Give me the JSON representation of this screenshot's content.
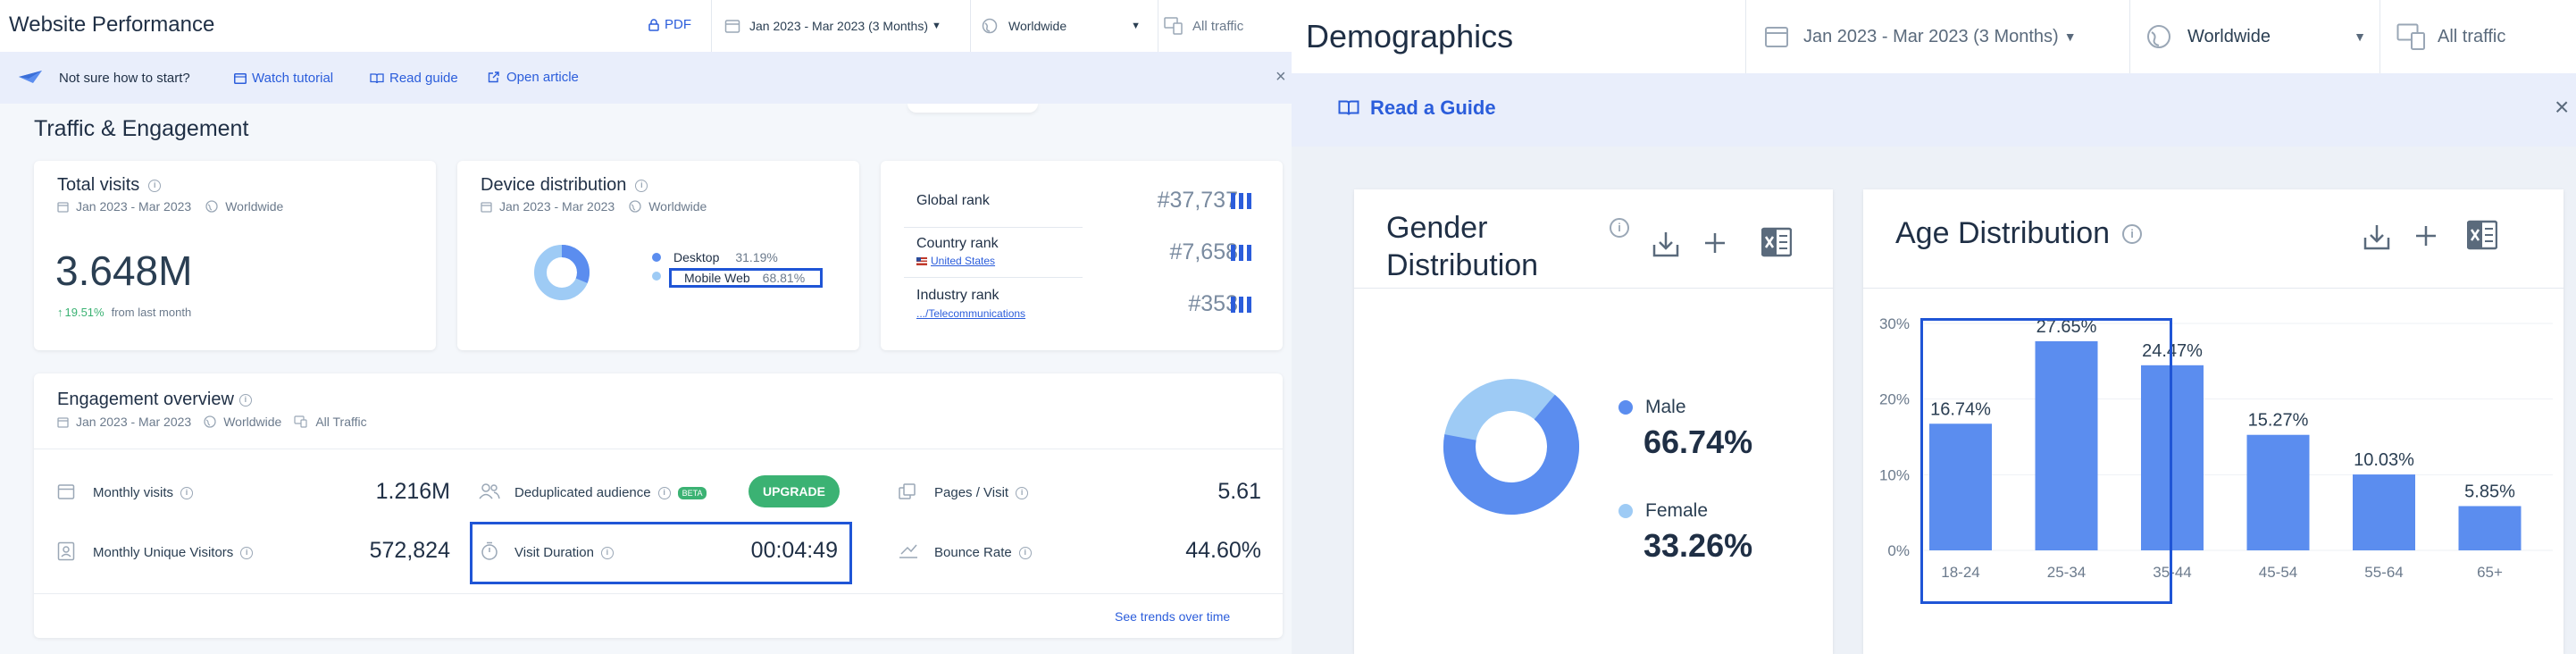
{
  "left": {
    "title": "Website Performance",
    "pdf_label": "PDF",
    "date_range": "Jan 2023 - Mar 2023 (3 Months)",
    "region": "Worldwide",
    "traffic": "All traffic",
    "banner": {
      "prompt": "Not sure how to start?",
      "watch": "Watch tutorial",
      "read": "Read guide",
      "article": "Open article"
    },
    "section_title": "Traffic & Engagement",
    "total_visits": {
      "title": "Total visits",
      "date": "Jan 2023 - Mar 2023",
      "region": "Worldwide",
      "value": "3.648M",
      "change": "19.51%",
      "change_suffix": "from last month"
    },
    "device": {
      "title": "Device distribution",
      "date": "Jan 2023 - Mar 2023",
      "region": "Worldwide",
      "desktop_label": "Desktop",
      "desktop_value": "31.19%",
      "mobile_label": "Mobile Web",
      "mobile_value": "68.81%",
      "desktop_fraction": 0.3119
    },
    "ranks": {
      "global_label": "Global rank",
      "global_value": "#37,737",
      "country_label": "Country rank",
      "country_sub": "United States",
      "country_value": "#7,658",
      "industry_label": "Industry rank",
      "industry_sub": ".../Telecommunications",
      "industry_value": "#353"
    },
    "engagement": {
      "title": "Engagement overview",
      "date": "Jan 2023 - Mar 2023",
      "region": "Worldwide",
      "traffic": "All Traffic",
      "monthly_visits_label": "Monthly visits",
      "monthly_visits_value": "1.216M",
      "unique_label": "Monthly Unique Visitors",
      "unique_value": "572,824",
      "dedup_label": "Deduplicated audience",
      "beta": "BETA",
      "upgrade": "UPGRADE",
      "duration_label": "Visit Duration",
      "duration_value": "00:04:49",
      "pages_label": "Pages / Visit",
      "pages_value": "5.61",
      "bounce_label": "Bounce Rate",
      "bounce_value": "44.60%",
      "trends_link": "See trends over time"
    }
  },
  "right": {
    "title": "Demographics",
    "date_range": "Jan 2023 - Mar 2023 (3 Months)",
    "region": "Worldwide",
    "traffic": "All traffic",
    "guide": "Read a Guide",
    "gender": {
      "title_line1": "Gender",
      "title_line2": "Distribution",
      "male_label": "Male",
      "male_value": "66.74%",
      "female_label": "Female",
      "female_value": "33.26%",
      "male_fraction": 0.6674
    },
    "age": {
      "title": "Age Distribution"
    }
  },
  "chart_data": {
    "type": "bar",
    "categories": [
      "18-24",
      "25-34",
      "35-44",
      "45-54",
      "55-64",
      "65+"
    ],
    "values": [
      16.74,
      27.65,
      24.47,
      15.27,
      10.03,
      5.85
    ],
    "value_labels": [
      "16.74%",
      "27.65%",
      "24.47%",
      "15.27%",
      "10.03%",
      "5.85%"
    ],
    "yticks": [
      "0%",
      "10%",
      "20%",
      "30%"
    ],
    "ylim": [
      0,
      30
    ],
    "color": "#5b8def"
  },
  "colors": {
    "accent": "#2b5ddb",
    "bar": "#5b8def",
    "light": "#9ecbf5",
    "positive": "#3bb273",
    "highlight": "#1f55d6"
  }
}
